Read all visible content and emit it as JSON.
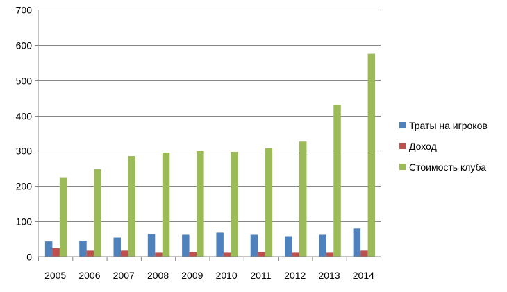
{
  "chart_data": {
    "type": "bar",
    "title": "",
    "xlabel": "",
    "ylabel": "",
    "ylim": [
      0,
      700
    ],
    "yticks": [
      0,
      100,
      200,
      300,
      400,
      500,
      600,
      700
    ],
    "grid": "horizontal",
    "legend_position": "right",
    "categories": [
      "2005",
      "2006",
      "2007",
      "2008",
      "2009",
      "2010",
      "2011",
      "2012",
      "2013",
      "2014"
    ],
    "series": [
      {
        "name": "Траты на игроков",
        "color": "#4f81bd",
        "values": [
          43,
          45,
          54,
          64,
          62,
          68,
          62,
          58,
          62,
          80
        ]
      },
      {
        "name": "Доход",
        "color": "#c0504d",
        "values": [
          24,
          17,
          17,
          11,
          13,
          11,
          13,
          11,
          11,
          17
        ]
      },
      {
        "name": "Стоимость клуба",
        "color": "#9bbb59",
        "values": [
          225,
          248,
          285,
          295,
          300,
          297,
          307,
          326,
          430,
          575
        ]
      }
    ]
  }
}
